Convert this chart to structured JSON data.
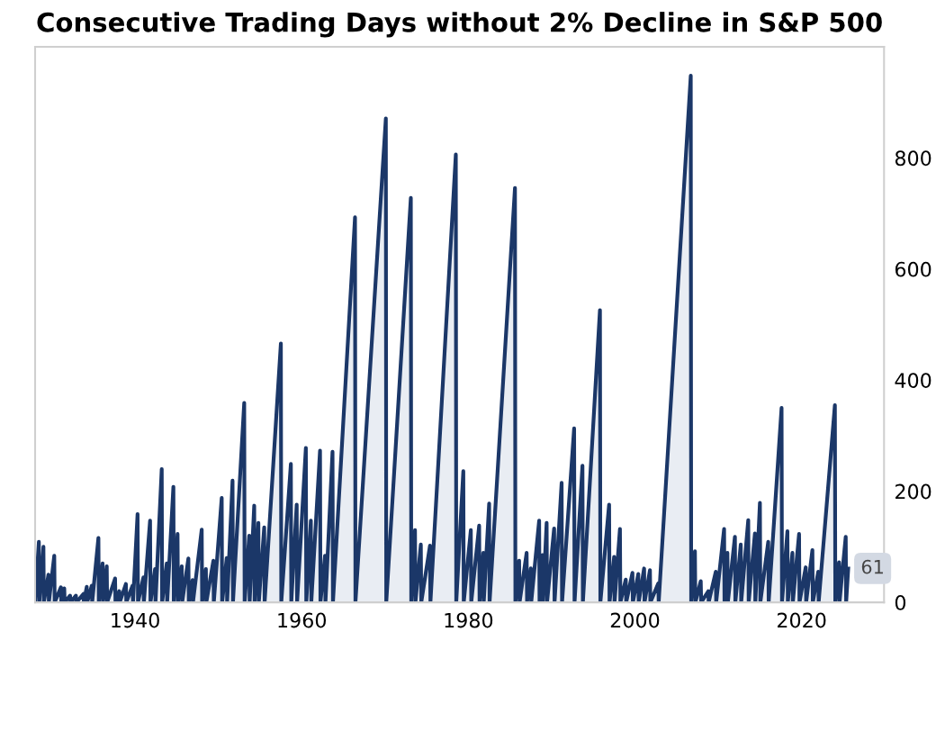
{
  "chart_data": {
    "type": "area",
    "title": "Consecutive Trading Days without 2% Decline in S&P 500",
    "x": [
      1928.0,
      1928.45,
      1928.5,
      1929.0,
      1929.05,
      1929.6,
      1929.65,
      1930.3,
      1930.35,
      1931.1,
      1931.15,
      1931.5,
      1931.55,
      1932.2,
      1932.25,
      1932.9,
      1932.95,
      1933.8,
      1933.85,
      1934.2,
      1934.25,
      1934.8,
      1934.85,
      1935.6,
      1935.65,
      1936.1,
      1936.15,
      1936.6,
      1936.65,
      1937.6,
      1937.65,
      1938.1,
      1938.15,
      1938.9,
      1938.95,
      1939.7,
      1939.75,
      1940.3,
      1940.35,
      1941.0,
      1941.05,
      1941.8,
      1941.85,
      1942.4,
      1942.45,
      1943.2,
      1943.25,
      1943.8,
      1943.85,
      1944.6,
      1944.65,
      1945.1,
      1945.15,
      1945.6,
      1945.65,
      1946.4,
      1946.45,
      1946.9,
      1946.95,
      1948.0,
      1948.05,
      1948.5,
      1948.55,
      1949.4,
      1949.45,
      1950.4,
      1950.45,
      1951.0,
      1951.05,
      1951.7,
      1951.75,
      1953.1,
      1953.15,
      1953.7,
      1953.75,
      1954.3,
      1954.35,
      1954.8,
      1954.85,
      1955.5,
      1955.55,
      1957.5,
      1957.55,
      1958.7,
      1958.75,
      1959.4,
      1959.45,
      1960.5,
      1960.55,
      1961.1,
      1961.15,
      1962.2,
      1962.25,
      1962.8,
      1962.85,
      1963.7,
      1963.75,
      1966.4,
      1966.45,
      1970.1,
      1970.15,
      1973.1,
      1973.15,
      1973.6,
      1973.65,
      1974.3,
      1974.35,
      1975.4,
      1975.45,
      1978.5,
      1978.55,
      1979.4,
      1979.45,
      1980.3,
      1980.35,
      1981.3,
      1981.35,
      1981.8,
      1981.85,
      1982.5,
      1982.55,
      1985.6,
      1985.65,
      1986.1,
      1986.15,
      1987.0,
      1987.05,
      1987.5,
      1987.55,
      1988.5,
      1988.55,
      1988.9,
      1988.95,
      1989.4,
      1989.45,
      1990.3,
      1990.35,
      1991.2,
      1991.25,
      1992.7,
      1992.75,
      1993.7,
      1993.75,
      1995.8,
      1995.85,
      1996.9,
      1996.95,
      1997.5,
      1997.55,
      1998.2,
      1998.25,
      1998.9,
      1998.95,
      1999.7,
      1999.75,
      2000.4,
      2000.45,
      2001.1,
      2001.15,
      2001.8,
      2001.85,
      2002.8,
      2002.85,
      2006.7,
      2006.75,
      2007.2,
      2007.25,
      2007.9,
      2007.95,
      2008.8,
      2008.85,
      2009.7,
      2009.75,
      2010.7,
      2010.75,
      2011.1,
      2011.15,
      2012.0,
      2012.05,
      2012.7,
      2012.75,
      2013.6,
      2013.65,
      2014.4,
      2014.45,
      2015.0,
      2015.05,
      2016.0,
      2016.05,
      2017.6,
      2017.65,
      2018.3,
      2018.35,
      2018.9,
      2018.95,
      2019.7,
      2019.75,
      2020.5,
      2020.55,
      2021.3,
      2021.35,
      2022.0,
      2022.05,
      2024.0,
      2024.05,
      2024.5,
      2024.55,
      2025.3,
      2025.35,
      2025.6
    ],
    "values": [
      0,
      109,
      0,
      100,
      0,
      50,
      0,
      84,
      0,
      27,
      0,
      25,
      0,
      12,
      0,
      12,
      0,
      15,
      0,
      28,
      0,
      30,
      0,
      116,
      0,
      70,
      0,
      65,
      0,
      43,
      0,
      20,
      0,
      33,
      0,
      30,
      0,
      159,
      0,
      45,
      0,
      147,
      0,
      60,
      0,
      240,
      0,
      70,
      0,
      208,
      0,
      123,
      0,
      65,
      0,
      79,
      0,
      40,
      0,
      131,
      0,
      60,
      0,
      75,
      0,
      188,
      0,
      80,
      0,
      219,
      0,
      359,
      0,
      120,
      0,
      174,
      0,
      143,
      0,
      135,
      0,
      466,
      0,
      249,
      0,
      176,
      0,
      278,
      0,
      147,
      0,
      273,
      0,
      84,
      0,
      271,
      0,
      693,
      0,
      871,
      0,
      728,
      0,
      130,
      0,
      104,
      0,
      102,
      0,
      806,
      0,
      236,
      0,
      130,
      0,
      138,
      0,
      89,
      0,
      178,
      0,
      746,
      0,
      75,
      0,
      89,
      0,
      61,
      0,
      147,
      0,
      85,
      0,
      143,
      0,
      133,
      0,
      215,
      0,
      313,
      0,
      246,
      0,
      526,
      0,
      176,
      0,
      82,
      0,
      132,
      0,
      41,
      0,
      53,
      0,
      51,
      0,
      61,
      0,
      58,
      0,
      34,
      0,
      948,
      0,
      92,
      0,
      38,
      0,
      20,
      0,
      55,
      0,
      132,
      0,
      89,
      0,
      118,
      0,
      104,
      0,
      148,
      0,
      124,
      0,
      179,
      0,
      109,
      0,
      350,
      0,
      128,
      0,
      89,
      0,
      123,
      0,
      63,
      0,
      94,
      0,
      55,
      0,
      355,
      0,
      72,
      0,
      118,
      0,
      61
    ],
    "color": "#1b3768",
    "xlim": [
      1928.0,
      2029.9
    ],
    "xticks": [
      1940,
      1960,
      1980,
      2000,
      2020
    ],
    "ylim": [
      0,
      1000
    ],
    "yticks": [
      0,
      200,
      400,
      600,
      800
    ],
    "grid": false,
    "annotations": [
      {
        "text": "61",
        "x": 2025.6,
        "y": 61
      }
    ]
  }
}
